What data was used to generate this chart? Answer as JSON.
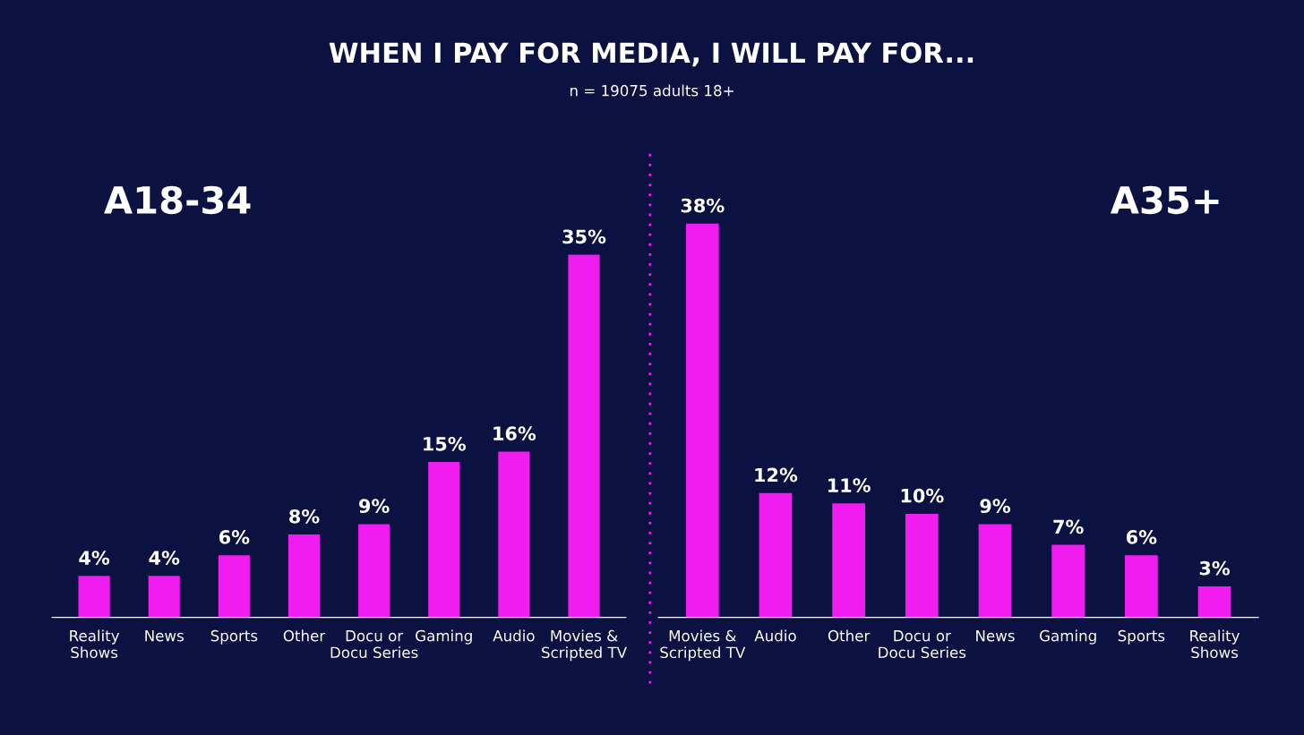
{
  "chart_data": [
    {
      "type": "bar",
      "title": "WHEN I PAY FOR MEDIA, I WILL PAY FOR...",
      "subtitle": "n = 19075 adults 18+",
      "annotations": [
        "A18-34"
      ],
      "categories": [
        "Reality\nShows",
        "News",
        "Sports",
        "Other",
        "Docu or\nDocu Series",
        "Gaming",
        "Audio",
        "Movies &\nScripted TV"
      ],
      "values": [
        4,
        4,
        6,
        8,
        9,
        15,
        16,
        35
      ],
      "value_labels": [
        "4%",
        "4%",
        "6%",
        "8%",
        "9%",
        "15%",
        "16%",
        "35%"
      ],
      "color": "#f01cf0",
      "grid": false,
      "legend": false
    },
    {
      "type": "bar",
      "annotations": [
        "A35+"
      ],
      "categories": [
        "Movies &\nScripted TV",
        "Audio",
        "Other",
        "Docu or\nDocu Series",
        "News",
        "Gaming",
        "Sports",
        "Reality\nShows"
      ],
      "values": [
        38,
        12,
        11,
        10,
        9,
        7,
        6,
        3
      ],
      "value_labels": [
        "38%",
        "12%",
        "11%",
        "10%",
        "9%",
        "7%",
        "6%",
        "3%"
      ],
      "color": "#f01cf0",
      "grid": false,
      "legend": false
    }
  ]
}
